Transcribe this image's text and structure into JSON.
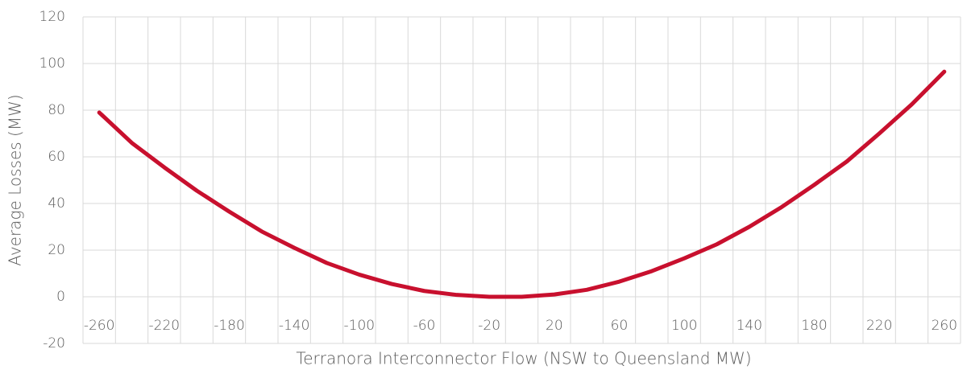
{
  "chart_data": {
    "type": "line",
    "x_label": "Terranora Interconnector Flow (NSW to Queensland MW)",
    "y_label": "Average Losses (MW)",
    "categories": [
      -260,
      null,
      -220,
      null,
      -180,
      null,
      -140,
      null,
      -100,
      null,
      -60,
      null,
      -20,
      null,
      20,
      null,
      60,
      null,
      100,
      null,
      140,
      null,
      180,
      null,
      220,
      null,
      260
    ],
    "series": [
      {
        "name": "Average Losses",
        "color": "#c8102e",
        "values": [
          79,
          66,
          55.5,
          45.5,
          36.5,
          28,
          21,
          14.5,
          9.5,
          5.5,
          2.5,
          0.8,
          0,
          0,
          1,
          3,
          6.5,
          11,
          16.5,
          22.5,
          30,
          38.5,
          48,
          58,
          70,
          82.5,
          96.5
        ]
      }
    ],
    "ylim": [
      -20,
      120
    ],
    "yticks": [
      -20,
      0,
      20,
      40,
      60,
      80,
      100,
      120
    ],
    "grid": true
  }
}
